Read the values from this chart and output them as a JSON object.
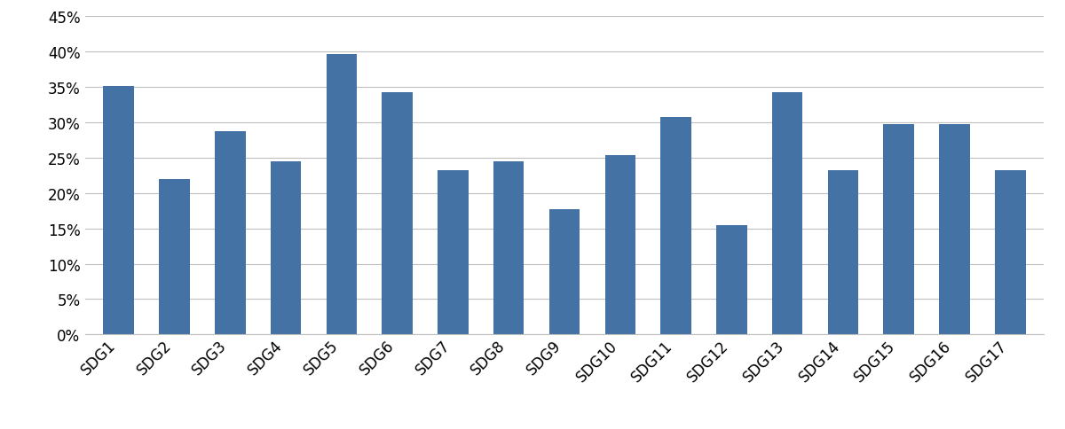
{
  "categories": [
    "SDG1",
    "SDG2",
    "SDG3",
    "SDG4",
    "SDG5",
    "SDG6",
    "SDG7",
    "SDG8",
    "SDG9",
    "SDG10",
    "SDG11",
    "SDG12",
    "SDG13",
    "SDG14",
    "SDG15",
    "SDG16",
    "SDG17"
  ],
  "values": [
    0.352,
    0.22,
    0.287,
    0.245,
    0.397,
    0.343,
    0.232,
    0.245,
    0.177,
    0.254,
    0.308,
    0.155,
    0.343,
    0.232,
    0.298,
    0.298,
    0.232
  ],
  "bar_color": "#4472a4",
  "background_color": "#ffffff",
  "grid_color": "#bfbfbf",
  "ylim": [
    0,
    0.45
  ],
  "yticks": [
    0.0,
    0.05,
    0.1,
    0.15,
    0.2,
    0.25,
    0.3,
    0.35,
    0.4,
    0.45
  ],
  "bar_width": 0.55,
  "tick_fontsize": 12,
  "xlabel_fontsize": 12
}
